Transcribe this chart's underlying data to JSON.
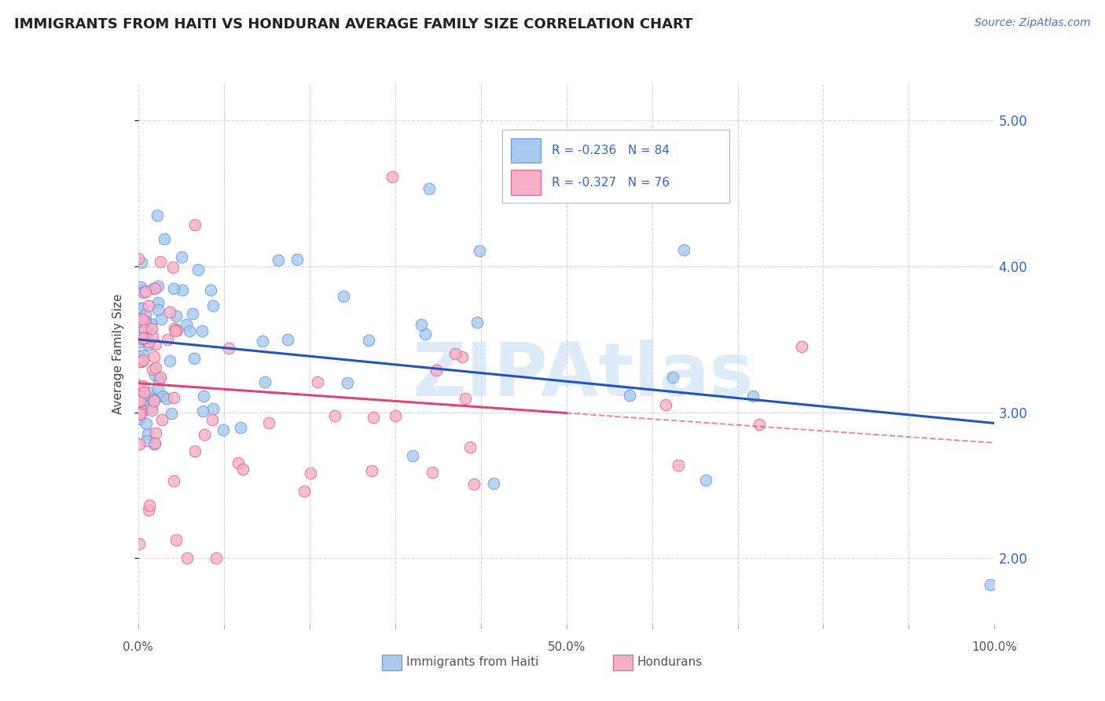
{
  "title": "IMMIGRANTS FROM HAITI VS HONDURAN AVERAGE FAMILY SIZE CORRELATION CHART",
  "source_text": "Source: ZipAtlas.com",
  "ylabel": "Average Family Size",
  "ymin": 1.55,
  "ymax": 5.25,
  "xmin": 0.0,
  "xmax": 100.0,
  "haiti_color": "#a8c8f0",
  "haiti_edge": "#6699dd",
  "honduras_color": "#f5b0c8",
  "honduras_edge": "#dd6688",
  "haiti_R": -0.236,
  "haiti_N": 84,
  "honduras_R": -0.327,
  "honduras_N": 76,
  "haiti_line_color": "#2255bb",
  "honduras_line_color": "#dd4477",
  "watermark": "ZIPAtlas",
  "watermark_color": "#c8dff5",
  "legend_label_haiti": "Immigrants from Haiti",
  "legend_label_honduras": "Hondurans",
  "title_color": "#222222",
  "source_color": "#4477cc",
  "axis_label_color": "#555555",
  "right_tick_color": "#3366cc",
  "grid_color": "#cccccc"
}
